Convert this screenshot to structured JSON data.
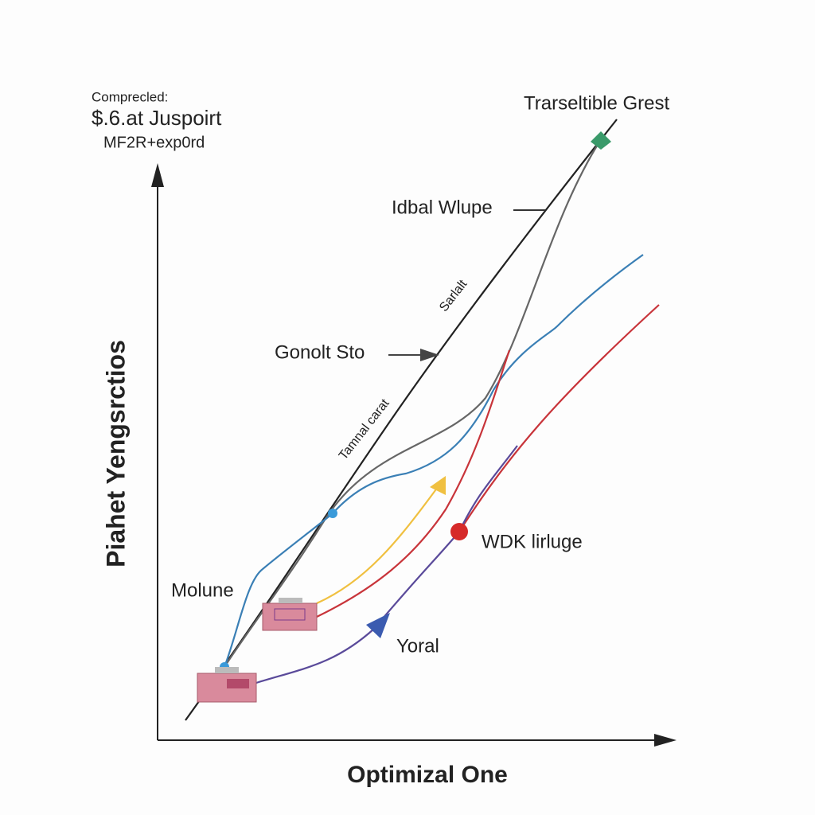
{
  "header": {
    "line1": "Comprecled:",
    "line2": "$.6.at Juspoirt",
    "line3": "MF2R+exp0rd"
  },
  "axes": {
    "y_label": "Piahet Yengsrctios",
    "x_label": "Optimizal One"
  },
  "labels": {
    "top_right": "Trarseltible Grest",
    "ideal": "Idbal Wlupe",
    "sarlalt": "Sarlalt",
    "gonolt": "Gonolt Sto",
    "tamnal": "Tamnal carat",
    "wdk": "WDK lirluge",
    "molune": "Molune",
    "yoral": "Yoral"
  }
}
